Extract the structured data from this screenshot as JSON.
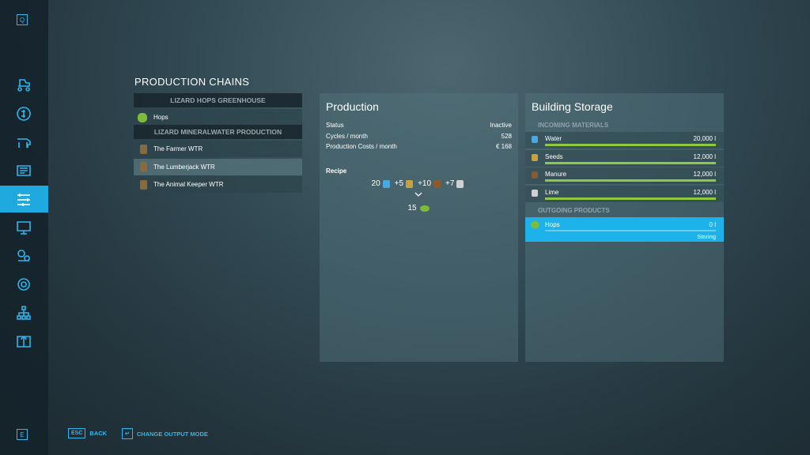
{
  "sidebar": {
    "top_key": "Q",
    "bottom_key": "E"
  },
  "chains": {
    "title": "PRODUCTION CHAINS",
    "groups": [
      {
        "name": "LIZARD HOPS GREENHOUSE",
        "items": [
          "Hops"
        ]
      },
      {
        "name": "LIZARD MINERALWATER PRODUCTION",
        "items": [
          "The Farmer WTR",
          "The Lumberjack WTR",
          "The Animal Keeper WTR"
        ]
      }
    ]
  },
  "production": {
    "title": "Production",
    "stats": [
      [
        "Status",
        "Inactive"
      ],
      [
        "Cycles / month",
        "528"
      ],
      [
        "Production Costs / month",
        "€ 168"
      ]
    ],
    "recipe_label": "Recipe",
    "inputs": [
      "20",
      "+5",
      "+10",
      "+7"
    ],
    "output": "15"
  },
  "storage": {
    "title": "Building Storage",
    "incoming_label": "INCOMING MATERIALS",
    "incoming": [
      {
        "name": "Water",
        "amount": "20,000 l"
      },
      {
        "name": "Seeds",
        "amount": "12,000 l"
      },
      {
        "name": "Manure",
        "amount": "12,000 l"
      },
      {
        "name": "Lime",
        "amount": "12,000 l"
      }
    ],
    "outgoing_label": "OUTGOING PRODUCTS",
    "outgoing": [
      {
        "name": "Hops",
        "amount": "0 l",
        "mode": "Storing"
      }
    ]
  },
  "footer": {
    "buttons": [
      {
        "key": "ESC",
        "label": "BACK"
      },
      {
        "key": "↵",
        "label": "CHANGE OUTPUT MODE"
      }
    ]
  }
}
